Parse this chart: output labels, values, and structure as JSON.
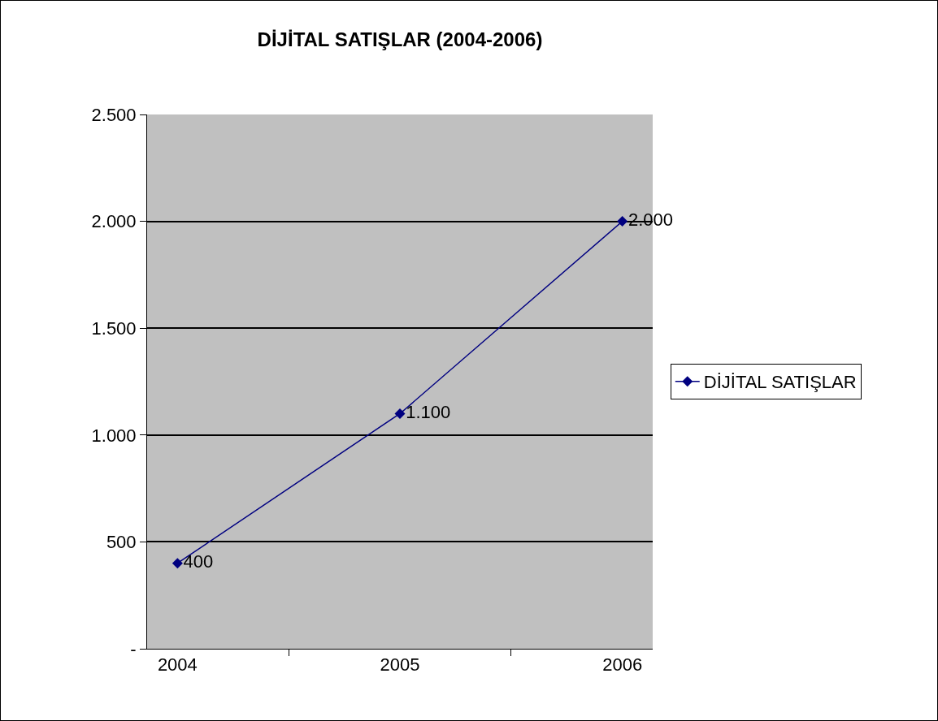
{
  "chart_data": {
    "type": "line",
    "title": "DİJİTAL SATIŞLAR (2004-2006)",
    "categories": [
      "2004",
      "2005",
      "2006"
    ],
    "series": [
      {
        "name": "DİJİTAL SATIŞLAR",
        "color": "#000080",
        "values": [
          400,
          1100,
          2000
        ],
        "value_labels": [
          "400",
          "1.100",
          "2.000"
        ]
      }
    ],
    "ylim": [
      0,
      2500
    ],
    "yticks": [
      {
        "value": 0,
        "label": "-"
      },
      {
        "value": 500,
        "label": "500"
      },
      {
        "value": 1000,
        "label": "1.000"
      },
      {
        "value": 1500,
        "label": "1.500"
      },
      {
        "value": 2000,
        "label": "2.000"
      },
      {
        "value": 2500,
        "label": "2.500"
      }
    ],
    "grid": "y",
    "legend": "right",
    "marker": "diamond",
    "line_style": "solid"
  }
}
